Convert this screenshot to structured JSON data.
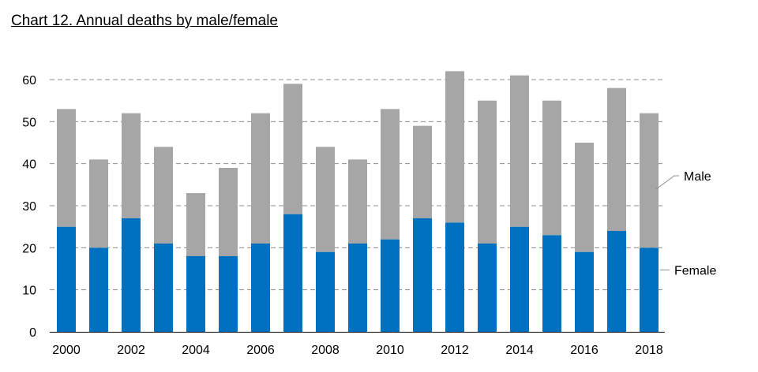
{
  "title": "Chart 12. Annual deaths by male/female",
  "chart_data": {
    "type": "bar",
    "stacked": true,
    "years": [
      "2000",
      "2001",
      "2002",
      "2003",
      "2004",
      "2005",
      "2006",
      "2007",
      "2008",
      "2009",
      "2010",
      "2011",
      "2012",
      "2013",
      "2014",
      "2015",
      "2016",
      "2017",
      "2018"
    ],
    "x_tick_labels": [
      "2000",
      "2002",
      "2004",
      "2006",
      "2008",
      "2010",
      "2012",
      "2014",
      "2016",
      "2018"
    ],
    "series": [
      {
        "name": "Female",
        "color": "#0070C0",
        "values": [
          25,
          20,
          27,
          21,
          18,
          18,
          21,
          28,
          19,
          21,
          22,
          27,
          26,
          21,
          25,
          23,
          19,
          24,
          20
        ]
      },
      {
        "name": "Male",
        "color": "#A6A6A6",
        "values": [
          28,
          21,
          25,
          23,
          15,
          21,
          31,
          31,
          25,
          20,
          31,
          22,
          36,
          34,
          36,
          32,
          26,
          34,
          32
        ]
      }
    ],
    "ylim": [
      0,
      60
    ],
    "yticks": [
      0,
      10,
      20,
      30,
      40,
      50,
      60
    ],
    "grid": "dashed horizontal",
    "legend": "right, labels beside the last bar"
  }
}
